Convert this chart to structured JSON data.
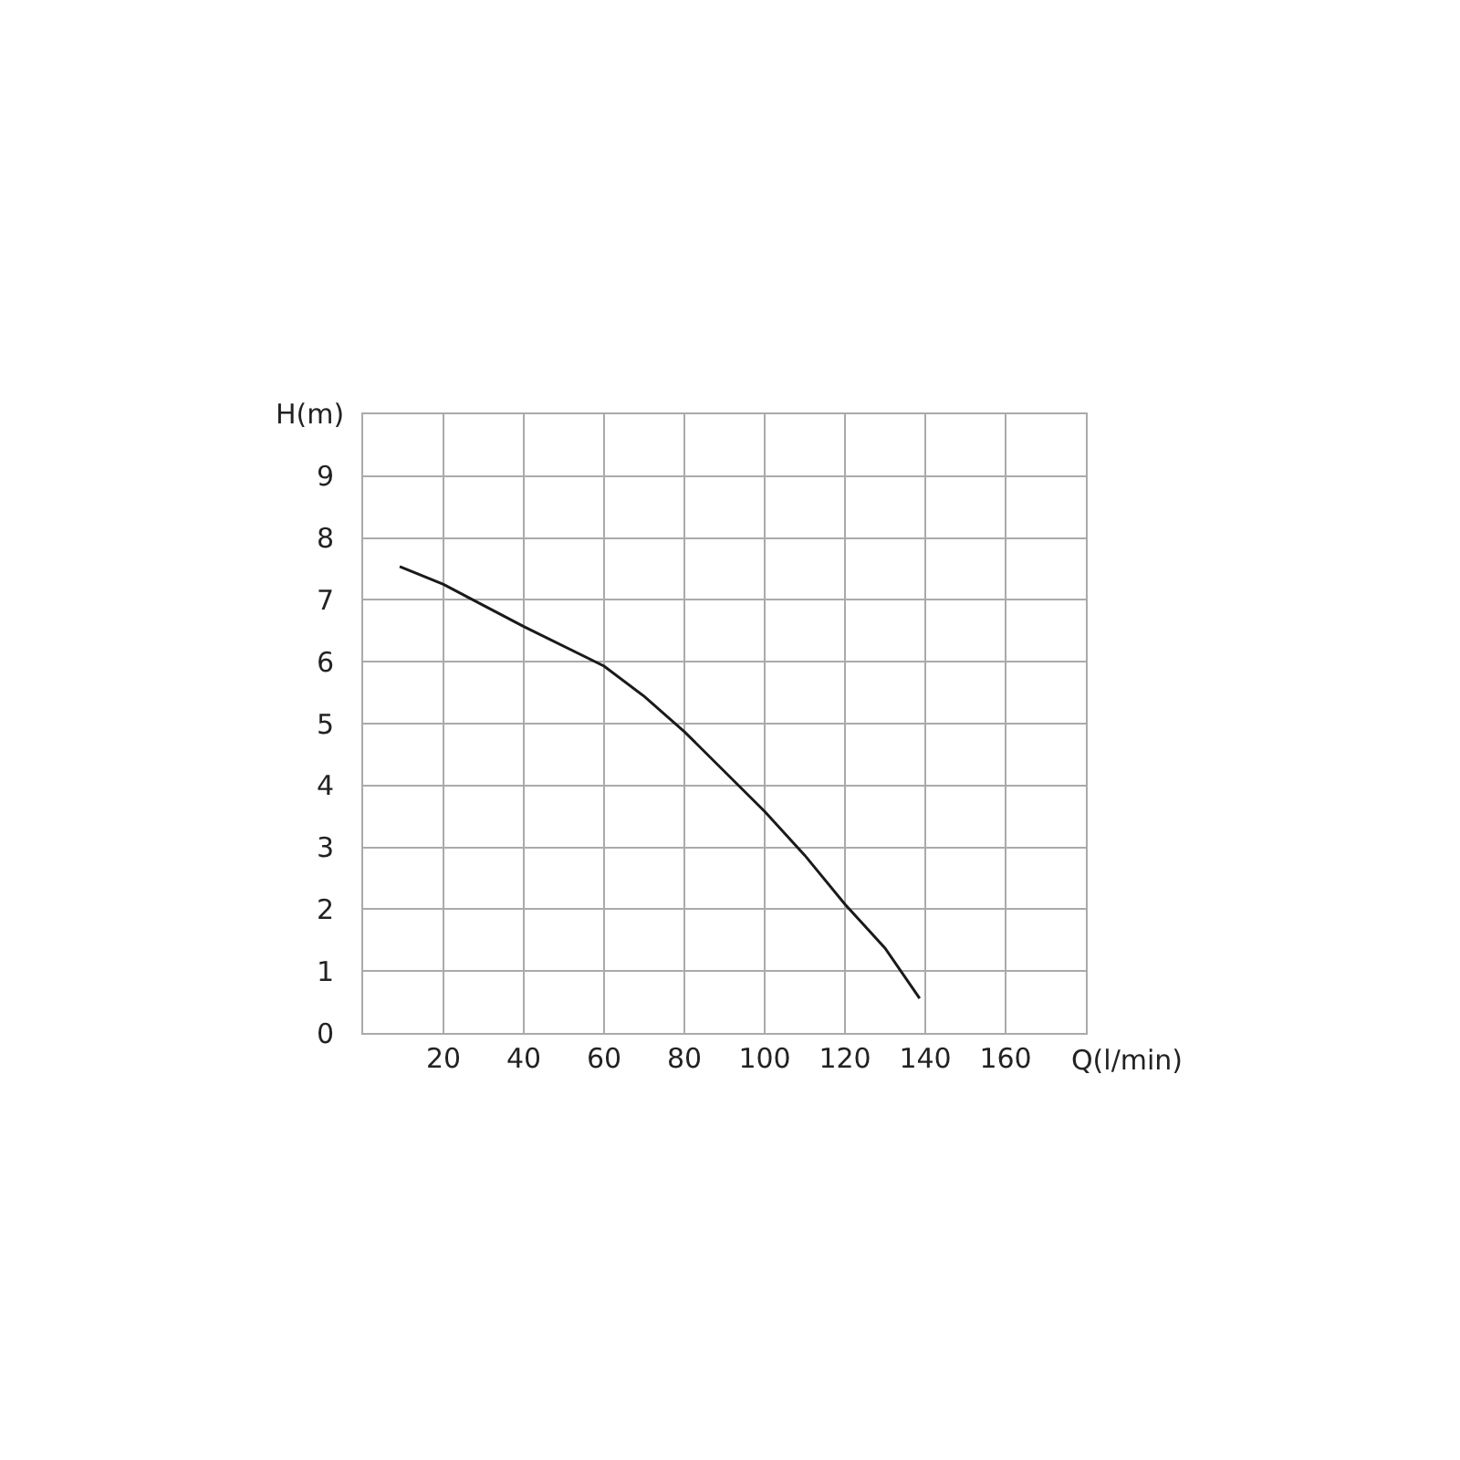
{
  "chart_data": {
    "type": "line",
    "xlabel": "Q(l/min)",
    "ylabel": "H(m)",
    "x": [
      9.1,
      20,
      40,
      60,
      70,
      80,
      100,
      110,
      120,
      130,
      138.6
    ],
    "series": [
      {
        "color": "#1a1a1a",
        "values": [
          7.54,
          7.25,
          6.57,
          5.93,
          5.44,
          4.87,
          3.58,
          2.87,
          2.08,
          1.37,
          0.56
        ]
      }
    ],
    "xlim": [
      0,
      180
    ],
    "xticks": [
      {
        "value": 0,
        "label": null
      },
      20,
      40,
      60,
      80,
      100,
      120,
      140,
      160,
      {
        "value": 180,
        "label": null
      }
    ],
    "ylim": [
      0,
      10
    ],
    "yticks": [
      0,
      1,
      2,
      3,
      4,
      5,
      6,
      7,
      8,
      9,
      {
        "value": 10,
        "label": null
      }
    ],
    "grid": true,
    "marker": "none",
    "line_style": "solid"
  }
}
